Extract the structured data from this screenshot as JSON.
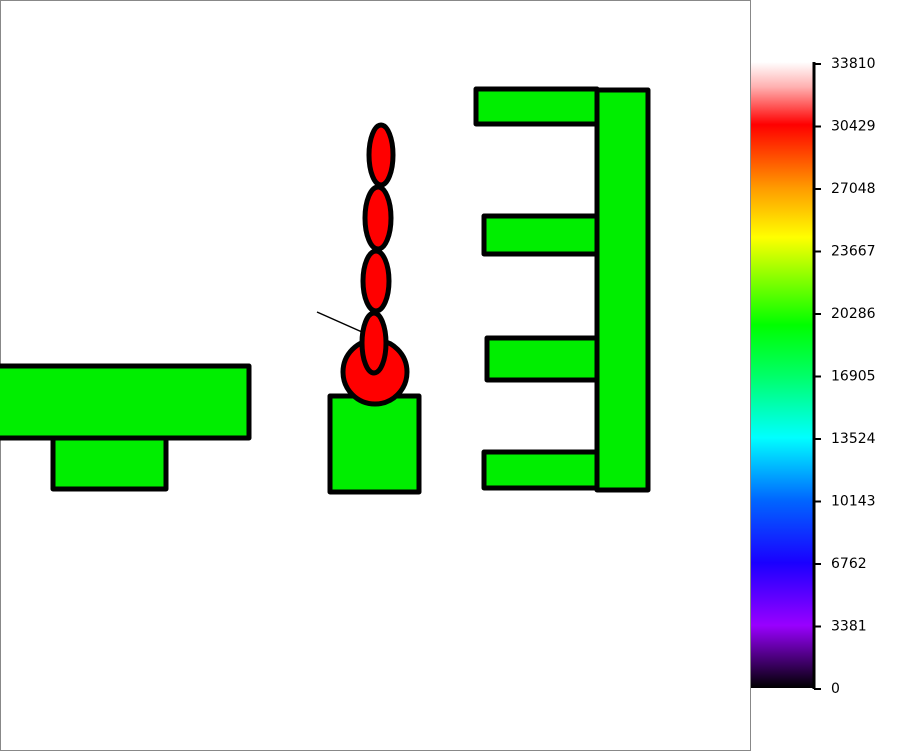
{
  "colorbar": {
    "ticks": [
      33810,
      30429,
      27048,
      23667,
      20286,
      16905,
      13524,
      10143,
      6762,
      3381,
      0
    ]
  }
}
